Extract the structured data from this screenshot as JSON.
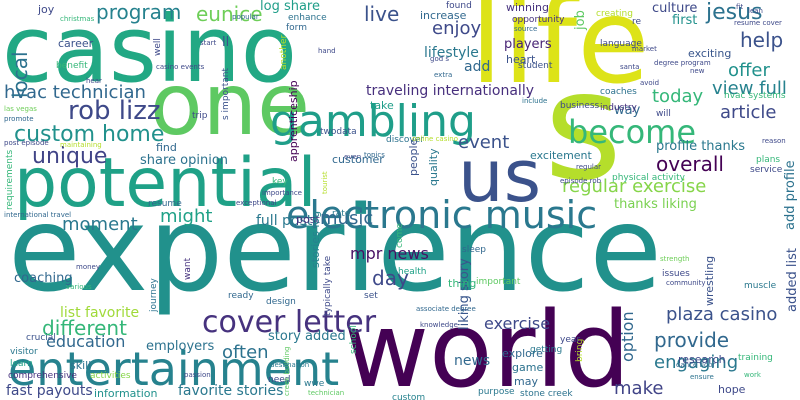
{
  "words": [
    {
      "text": "experience",
      "color": "#21918c"
    },
    {
      "text": "world",
      "color": "#440154"
    },
    {
      "text": "casino",
      "color": "#22a884"
    },
    {
      "text": "life",
      "color": "#dde318"
    },
    {
      "text": "s",
      "color": "#b5de2b"
    },
    {
      "text": "one",
      "color": "#5ec962"
    },
    {
      "text": "us",
      "color": "#3b528b"
    },
    {
      "text": "potential",
      "color": "#1fa187"
    },
    {
      "text": "entertainment",
      "color": "#26828e"
    },
    {
      "text": "gambling",
      "color": "#1f9e89"
    },
    {
      "text": "electronic music",
      "color": "#2a788e"
    },
    {
      "text": "become",
      "color": "#35b779"
    },
    {
      "text": "cover letter",
      "color": "#46327e"
    },
    {
      "text": "custom home",
      "color": "#21918c"
    },
    {
      "text": "rob lizz",
      "color": "#3e4989"
    },
    {
      "text": "hvac technician",
      "color": "#31688e"
    },
    {
      "text": "unique",
      "color": "#414487"
    },
    {
      "text": "local",
      "color": "#2c728e"
    },
    {
      "text": "program",
      "color": "#26828e"
    },
    {
      "text": "eunice",
      "color": "#6ece58"
    },
    {
      "text": "live",
      "color": "#3b528b"
    },
    {
      "text": "jesus",
      "color": "#2c728e"
    },
    {
      "text": "help",
      "color": "#3b528b"
    },
    {
      "text": "offer",
      "color": "#21918c"
    },
    {
      "text": "view full",
      "color": "#26828e"
    },
    {
      "text": "article",
      "color": "#3e4989"
    },
    {
      "text": "today",
      "color": "#35b779"
    },
    {
      "text": "traveling internationally",
      "color": "#472f7d"
    },
    {
      "text": "enjoy",
      "color": "#3e4989"
    },
    {
      "text": "regular exercise",
      "color": "#86d549"
    },
    {
      "text": "overall",
      "color": "#440154"
    },
    {
      "text": "event",
      "color": "#3b528b"
    },
    {
      "text": "might",
      "color": "#1fa187"
    },
    {
      "text": "moment",
      "color": "#2a788e"
    },
    {
      "text": "different",
      "color": "#35b779"
    },
    {
      "text": "music",
      "color": "#31688e"
    },
    {
      "text": "day",
      "color": "#3e4989"
    },
    {
      "text": "mpr news",
      "color": "#471164"
    },
    {
      "text": "plaza casino",
      "color": "#3b528b"
    },
    {
      "text": "provide",
      "color": "#31688e"
    },
    {
      "text": "engaging",
      "color": "#2a788e"
    },
    {
      "text": "education",
      "color": "#31688e"
    },
    {
      "text": "often",
      "color": "#2c728e"
    },
    {
      "text": "exercise",
      "color": "#3e4989"
    },
    {
      "text": "make",
      "color": "#414487"
    },
    {
      "text": "option",
      "color": "#31688e"
    },
    {
      "text": "liking story",
      "color": "#39568c"
    },
    {
      "text": "full post",
      "color": "#2a788e"
    },
    {
      "text": "list favorite",
      "color": "#a0da39"
    },
    {
      "text": "favorite stories",
      "color": "#2a788e"
    },
    {
      "text": "fast payouts",
      "color": "#3e4989"
    },
    {
      "text": "add",
      "color": "#31688e"
    },
    {
      "text": "lifestyle",
      "color": "#2a788e"
    },
    {
      "text": "news",
      "color": "#31688e"
    },
    {
      "text": "share opinion",
      "color": "#2c728e"
    },
    {
      "text": "log share",
      "color": "#1f9e89"
    },
    {
      "text": "players",
      "color": "#482475"
    },
    {
      "text": "winning",
      "color": "#46327e"
    },
    {
      "text": "coaching",
      "color": "#31688e"
    },
    {
      "text": "employers",
      "color": "#2c728e"
    },
    {
      "text": "story added",
      "color": "#2a788e"
    },
    {
      "text": "information",
      "color": "#21918c"
    },
    {
      "text": "first",
      "color": "#21918c"
    },
    {
      "text": "job",
      "color": "#5ec962"
    },
    {
      "text": "career",
      "color": "#3b528b"
    },
    {
      "text": "joy",
      "color": "#3e4989"
    },
    {
      "text": "increase",
      "color": "#31688e"
    },
    {
      "text": "culture",
      "color": "#3e4989"
    },
    {
      "text": "excitement",
      "color": "#2a788e"
    },
    {
      "text": "profile thanks",
      "color": "#2a788e"
    },
    {
      "text": "thanks liking",
      "color": "#7ad151"
    },
    {
      "text": "hvac systems",
      "color": "#35b779"
    },
    {
      "text": "added list",
      "color": "#3b528b"
    },
    {
      "text": "add profile",
      "color": "#2c728e"
    },
    {
      "text": "wrestling",
      "color": "#3b528b"
    },
    {
      "text": "exciting",
      "color": "#39568c"
    },
    {
      "text": "heart",
      "color": "#3b528b"
    },
    {
      "text": "way",
      "color": "#31688e"
    },
    {
      "text": "will",
      "color": "#3e4989"
    },
    {
      "text": "coaches",
      "color": "#2c728e"
    },
    {
      "text": "industry",
      "color": "#46327e"
    },
    {
      "text": "research",
      "color": "#3e4989"
    },
    {
      "text": "training",
      "color": "#35b779"
    },
    {
      "text": "hope",
      "color": "#3e4989"
    },
    {
      "text": "may",
      "color": "#31688e"
    },
    {
      "text": "game",
      "color": "#2c728e"
    },
    {
      "text": "explore",
      "color": "#31688e"
    },
    {
      "text": "stone creek",
      "color": "#2c728e"
    },
    {
      "text": "purpose",
      "color": "#2a788e"
    },
    {
      "text": "custom",
      "color": "#26828e"
    },
    {
      "text": "technician",
      "color": "#5ec962"
    },
    {
      "text": "need",
      "color": "#3e4989"
    },
    {
      "text": "find",
      "color": "#31688e"
    },
    {
      "text": "customer",
      "color": "#31688e"
    },
    {
      "text": "post",
      "color": "#46327e"
    },
    {
      "text": "apprenticeship",
      "color": "#440154"
    },
    {
      "text": "enhance",
      "color": "#2c728e"
    },
    {
      "text": "take",
      "color": "#1f9e89"
    },
    {
      "text": "twodata",
      "color": "#3b528b"
    },
    {
      "text": "discover",
      "color": "#2c728e"
    },
    {
      "text": "key",
      "color": "#35b779"
    },
    {
      "text": "quality",
      "color": "#2a788e"
    },
    {
      "text": "people",
      "color": "#3b528b"
    },
    {
      "text": "thing",
      "color": "#35b779"
    },
    {
      "text": "important",
      "color": "#5ec962"
    },
    {
      "text": "health",
      "color": "#1fa187"
    },
    {
      "text": "sleep",
      "color": "#31688e"
    },
    {
      "text": "stories log",
      "color": "#26828e"
    },
    {
      "text": "typically take",
      "color": "#3e4989"
    },
    {
      "text": "come",
      "color": "#35b779"
    },
    {
      "text": "set",
      "color": "#3b528b"
    },
    {
      "text": "rate",
      "color": "#2a788e"
    },
    {
      "text": "crucial",
      "color": "#3b528b"
    },
    {
      "text": "visitor",
      "color": "#2a788e"
    },
    {
      "text": "skill",
      "color": "#2c728e"
    },
    {
      "text": "learn",
      "color": "#1fa187"
    },
    {
      "text": "comprehensive",
      "color": "#46327e"
    },
    {
      "text": "activities",
      "color": "#86d549"
    },
    {
      "text": "ready",
      "color": "#31688e"
    },
    {
      "text": "design",
      "color": "#31688e"
    },
    {
      "text": "want",
      "color": "#46327e"
    },
    {
      "text": "journey",
      "color": "#2c728e"
    },
    {
      "text": "money",
      "color": "#3e4989"
    },
    {
      "text": "various",
      "color": "#35b779"
    },
    {
      "text": "resume",
      "color": "#31688e"
    },
    {
      "text": "physical activity",
      "color": "#35b779"
    },
    {
      "text": "service",
      "color": "#3e4989"
    },
    {
      "text": "plans",
      "color": "#35b779"
    },
    {
      "text": "muscle",
      "color": "#2a788e"
    },
    {
      "text": "issues",
      "color": "#3e4989"
    },
    {
      "text": "community",
      "color": "#3e4989"
    },
    {
      "text": "strength",
      "color": "#6ece58"
    },
    {
      "text": "getting",
      "color": "#2a788e"
    },
    {
      "text": "bring",
      "color": "#b5de2b"
    },
    {
      "text": "year",
      "color": "#3e4989"
    },
    {
      "text": "school",
      "color": "#35b779"
    },
    {
      "text": "associate degree",
      "color": "#31688e"
    },
    {
      "text": "knowledge",
      "color": "#3e4989"
    },
    {
      "text": "creek building",
      "color": "#5ec962"
    },
    {
      "text": "passion",
      "color": "#3e4989"
    },
    {
      "text": "destination",
      "color": "#2a788e"
    },
    {
      "text": "wwe",
      "color": "#2a788e"
    },
    {
      "text": "ensure",
      "color": "#2c728e"
    },
    {
      "text": "work",
      "color": "#35b779"
    },
    {
      "text": "dance floor",
      "color": "#31688e"
    },
    {
      "text": "business",
      "color": "#3e4989"
    },
    {
      "text": "include",
      "color": "#2c728e"
    },
    {
      "text": "student",
      "color": "#3b528b"
    },
    {
      "text": "language",
      "color": "#3e4989"
    },
    {
      "text": "resume cover",
      "color": "#3e4989"
    },
    {
      "text": "creating",
      "color": "#b5de2b"
    },
    {
      "text": "opportunity",
      "color": "#46327e"
    },
    {
      "text": "found",
      "color": "#3e4989"
    },
    {
      "text": "source",
      "color": "#31688e"
    },
    {
      "text": "christmas",
      "color": "#35b779"
    },
    {
      "text": "popular",
      "color": "#31688e"
    },
    {
      "text": "hand",
      "color": "#3e4989"
    },
    {
      "text": "form",
      "color": "#31688e"
    },
    {
      "text": "another",
      "color": "#b5de2b"
    },
    {
      "text": "ll",
      "color": "#3b528b"
    },
    {
      "text": "start",
      "color": "#3e4989"
    },
    {
      "text": "benefit",
      "color": "#35b779"
    },
    {
      "text": "hear",
      "color": "#3e4989"
    },
    {
      "text": "well",
      "color": "#3e4989"
    },
    {
      "text": "las vegas",
      "color": "#6ece58"
    },
    {
      "text": "promote",
      "color": "#31688e"
    },
    {
      "text": "post episode",
      "color": "#3e4989"
    },
    {
      "text": "maintaining",
      "color": "#b5de2b"
    },
    {
      "text": "requirements",
      "color": "#35b779"
    },
    {
      "text": "international travel",
      "color": "#31688e"
    },
    {
      "text": "casino events",
      "color": "#3e4989"
    },
    {
      "text": "s important",
      "color": "#3b528b"
    },
    {
      "text": "trip",
      "color": "#3e4989"
    },
    {
      "text": "importance",
      "color": "#3e4989"
    },
    {
      "text": "god s",
      "color": "#3e4989"
    },
    {
      "text": "extra",
      "color": "#31688e"
    },
    {
      "text": "online casino",
      "color": "#b5de2b"
    },
    {
      "text": "topics",
      "color": "#31688e"
    },
    {
      "text": "even",
      "color": "#3e4989"
    },
    {
      "text": "tourist",
      "color": "#b5de2b"
    },
    {
      "text": "episode rob",
      "color": "#3e4989"
    },
    {
      "text": "regular",
      "color": "#3e4989"
    },
    {
      "text": "exceptional",
      "color": "#3e4989"
    },
    {
      "text": "reason",
      "color": "#3e4989"
    },
    {
      "text": "re",
      "color": "#3e4989"
    },
    {
      "text": "market",
      "color": "#3e4989"
    },
    {
      "text": "degree program",
      "color": "#3e4989"
    },
    {
      "text": "santa",
      "color": "#3e4989"
    },
    {
      "text": "avoid",
      "color": "#3e4989"
    },
    {
      "text": "new",
      "color": "#3e4989"
    },
    {
      "text": "lean",
      "color": "#3e4989"
    },
    {
      "text": "fit",
      "color": "#3e4989"
    }
  ]
}
